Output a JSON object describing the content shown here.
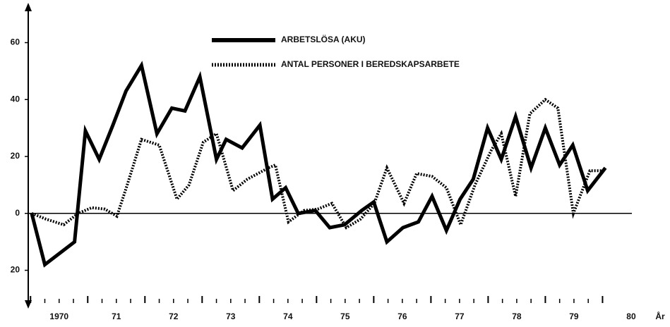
{
  "chart_data": {
    "type": "line",
    "series": [
      {
        "name": "ARBETSLÖSA (AKU)",
        "color": "#000000",
        "dash": "solid",
        "x": [
          1970.02,
          1970.25,
          1970.77,
          1970.96,
          1971.2,
          1971.44,
          1971.67,
          1971.94,
          1972.21,
          1972.47,
          1972.7,
          1972.96,
          1973.25,
          1973.42,
          1973.7,
          1974.01,
          1974.23,
          1974.46,
          1974.68,
          1974.98,
          1975.23,
          1975.49,
          1975.79,
          1976.0,
          1976.23,
          1976.51,
          1976.78,
          1977.02,
          1977.27,
          1977.51,
          1977.74,
          1977.99,
          1978.23,
          1978.48,
          1978.75,
          1979.0,
          1979.25,
          1979.48,
          1979.74,
          1980.05
        ],
        "values": [
          0,
          -18,
          -10,
          29,
          19,
          31,
          43,
          52,
          28,
          37,
          36,
          48,
          19,
          26,
          23,
          31,
          5,
          9,
          0,
          1,
          -5,
          -4,
          1,
          4,
          -10,
          -5,
          -3,
          6,
          -6,
          5,
          12,
          30,
          19,
          34,
          16,
          30,
          17,
          24,
          8,
          16
        ]
      },
      {
        "name": "ANTAL PERSONER I BEREDSKAPSARBETE",
        "color": "#000000",
        "dash": "dotted",
        "x": [
          1970.02,
          1970.27,
          1970.58,
          1970.83,
          1971.07,
          1971.3,
          1971.51,
          1971.69,
          1971.94,
          1972.25,
          1972.56,
          1972.77,
          1973.02,
          1973.25,
          1973.54,
          1973.79,
          1974.16,
          1974.28,
          1974.51,
          1974.78,
          1975.02,
          1975.27,
          1975.52,
          1975.77,
          1976.01,
          1976.23,
          1976.53,
          1976.75,
          1977.02,
          1977.27,
          1977.52,
          1977.77,
          1978.05,
          1978.23,
          1978.48,
          1978.73,
          1979.0,
          1979.22,
          1979.49,
          1979.78,
          1980.02
        ],
        "values": [
          0,
          -2,
          -4,
          0,
          2,
          1.5,
          -1,
          10,
          26,
          24,
          5,
          10,
          25,
          28,
          8,
          12,
          16,
          17,
          -3,
          1,
          1.5,
          3.5,
          -5,
          -2,
          3.5,
          16,
          3.5,
          14,
          13,
          9,
          -4,
          10,
          22,
          28,
          6,
          35,
          40,
          37,
          0,
          15,
          15
        ]
      }
    ],
    "xlim": [
      1969.96,
      1980.55
    ],
    "xticks": [
      {
        "value": 1970,
        "label": "1970"
      },
      {
        "value": 1971,
        "label": "71"
      },
      {
        "value": 1972,
        "label": "72"
      },
      {
        "value": 1973,
        "label": "73"
      },
      {
        "value": 1974,
        "label": "74"
      },
      {
        "value": 1975,
        "label": "75"
      },
      {
        "value": 1976,
        "label": "76"
      },
      {
        "value": 1977,
        "label": "77"
      },
      {
        "value": 1978,
        "label": "78"
      },
      {
        "value": 1979,
        "label": "79"
      },
      {
        "value": 1980,
        "label": "80"
      }
    ],
    "x_label": "År",
    "ylim": [
      -32,
      73
    ],
    "yticks": [
      60,
      40,
      20,
      0,
      {
        "value": -20,
        "label": "20"
      }
    ]
  }
}
